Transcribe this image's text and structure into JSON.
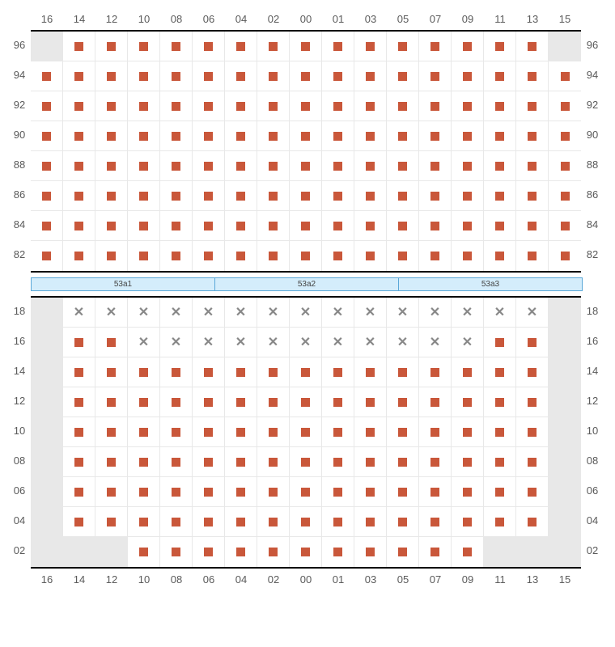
{
  "columns": [
    "16",
    "14",
    "12",
    "10",
    "08",
    "06",
    "04",
    "02",
    "00",
    "01",
    "03",
    "05",
    "07",
    "09",
    "11",
    "13",
    "15"
  ],
  "topRows": [
    "96",
    "94",
    "92",
    "90",
    "88",
    "86",
    "84",
    "82"
  ],
  "bottomRows": [
    "18",
    "16",
    "14",
    "12",
    "10",
    "08",
    "06",
    "04",
    "02"
  ],
  "sections": [
    "53a1",
    "53a2",
    "53a3"
  ],
  "colors": {
    "available": "#c9573a",
    "taken": "#888888",
    "void": "#e8e8e8",
    "sectionFill": "#d4edfb",
    "sectionBorder": "#5aa8d8",
    "grid": "#e8e8e8",
    "frame": "#000000"
  },
  "cellSize": {
    "w": 40,
    "h": 37
  },
  "seatMarker": {
    "w": 11,
    "h": 11
  },
  "topGrid": [
    [
      "v",
      "a",
      "a",
      "a",
      "a",
      "a",
      "a",
      "a",
      "a",
      "a",
      "a",
      "a",
      "a",
      "a",
      "a",
      "a",
      "v"
    ],
    [
      "a",
      "a",
      "a",
      "a",
      "a",
      "a",
      "a",
      "a",
      "a",
      "a",
      "a",
      "a",
      "a",
      "a",
      "a",
      "a",
      "a"
    ],
    [
      "a",
      "a",
      "a",
      "a",
      "a",
      "a",
      "a",
      "a",
      "a",
      "a",
      "a",
      "a",
      "a",
      "a",
      "a",
      "a",
      "a"
    ],
    [
      "a",
      "a",
      "a",
      "a",
      "a",
      "a",
      "a",
      "a",
      "a",
      "a",
      "a",
      "a",
      "a",
      "a",
      "a",
      "a",
      "a"
    ],
    [
      "a",
      "a",
      "a",
      "a",
      "a",
      "a",
      "a",
      "a",
      "a",
      "a",
      "a",
      "a",
      "a",
      "a",
      "a",
      "a",
      "a"
    ],
    [
      "a",
      "a",
      "a",
      "a",
      "a",
      "a",
      "a",
      "a",
      "a",
      "a",
      "a",
      "a",
      "a",
      "a",
      "a",
      "a",
      "a"
    ],
    [
      "a",
      "a",
      "a",
      "a",
      "a",
      "a",
      "a",
      "a",
      "a",
      "a",
      "a",
      "a",
      "a",
      "a",
      "a",
      "a",
      "a"
    ],
    [
      "a",
      "a",
      "a",
      "a",
      "a",
      "a",
      "a",
      "a",
      "a",
      "a",
      "a",
      "a",
      "a",
      "a",
      "a",
      "a",
      "a"
    ]
  ],
  "bottomGrid": [
    [
      "v",
      "x",
      "x",
      "x",
      "x",
      "x",
      "x",
      "x",
      "x",
      "x",
      "x",
      "x",
      "x",
      "x",
      "x",
      "x",
      "v"
    ],
    [
      "v",
      "a",
      "a",
      "x",
      "x",
      "x",
      "x",
      "x",
      "x",
      "x",
      "x",
      "x",
      "x",
      "x",
      "a",
      "a",
      "v"
    ],
    [
      "v",
      "a",
      "a",
      "a",
      "a",
      "a",
      "a",
      "a",
      "a",
      "a",
      "a",
      "a",
      "a",
      "a",
      "a",
      "a",
      "v"
    ],
    [
      "v",
      "a",
      "a",
      "a",
      "a",
      "a",
      "a",
      "a",
      "a",
      "a",
      "a",
      "a",
      "a",
      "a",
      "a",
      "a",
      "v"
    ],
    [
      "v",
      "a",
      "a",
      "a",
      "a",
      "a",
      "a",
      "a",
      "a",
      "a",
      "a",
      "a",
      "a",
      "a",
      "a",
      "a",
      "v"
    ],
    [
      "v",
      "a",
      "a",
      "a",
      "a",
      "a",
      "a",
      "a",
      "a",
      "a",
      "a",
      "a",
      "a",
      "a",
      "a",
      "a",
      "v"
    ],
    [
      "v",
      "a",
      "a",
      "a",
      "a",
      "a",
      "a",
      "a",
      "a",
      "a",
      "a",
      "a",
      "a",
      "a",
      "a",
      "a",
      "v"
    ],
    [
      "v",
      "a",
      "a",
      "a",
      "a",
      "a",
      "a",
      "a",
      "a",
      "a",
      "a",
      "a",
      "a",
      "a",
      "a",
      "a",
      "v"
    ],
    [
      "v",
      "v",
      "v",
      "a",
      "a",
      "a",
      "a",
      "a",
      "a",
      "a",
      "a",
      "a",
      "a",
      "a",
      "v",
      "v",
      "v"
    ]
  ]
}
